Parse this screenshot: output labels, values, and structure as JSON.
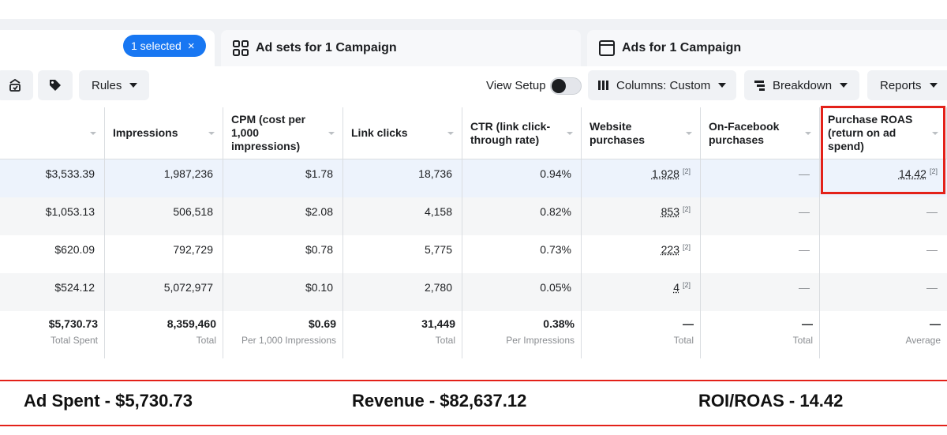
{
  "tabs": {
    "selected_badge": "1 selected",
    "badge_close": "×",
    "adsets_label": "Ad sets for 1 Campaign",
    "ads_label": "Ads for 1 Campaign"
  },
  "toolbar": {
    "rules_label": "Rules",
    "view_setup_label": "View Setup",
    "columns_label": "Columns: Custom",
    "breakdown_label": "Breakdown",
    "reports_label": "Reports"
  },
  "table": {
    "headers": [
      "",
      "Impressions",
      "CPM (cost per 1,000 impressions)",
      "Link clicks",
      "CTR (link click-through rate)",
      "Website purchases",
      "On-Facebook purchases",
      "Purchase ROAS (return on ad spend)"
    ],
    "rows": [
      {
        "spent": "$3,533.39",
        "impressions": "1,987,236",
        "cpm": "$1.78",
        "clicks": "18,736",
        "ctr": "0.94%",
        "web": "1,928",
        "web_note": "[2]",
        "onfb": "—",
        "roas": "14.42",
        "roas_note": "[2]"
      },
      {
        "spent": "$1,053.13",
        "impressions": "506,518",
        "cpm": "$2.08",
        "clicks": "4,158",
        "ctr": "0.82%",
        "web": "853",
        "web_note": "[2]",
        "onfb": "—",
        "roas": "—",
        "roas_note": ""
      },
      {
        "spent": "$620.09",
        "impressions": "792,729",
        "cpm": "$0.78",
        "clicks": "5,775",
        "ctr": "0.73%",
        "web": "223",
        "web_note": "[2]",
        "onfb": "—",
        "roas": "—",
        "roas_note": ""
      },
      {
        "spent": "$524.12",
        "impressions": "5,072,977",
        "cpm": "$0.10",
        "clicks": "2,780",
        "ctr": "0.05%",
        "web": "4",
        "web_note": "[2]",
        "onfb": "—",
        "roas": "—",
        "roas_note": ""
      }
    ],
    "totals": [
      {
        "value": "$5,730.73",
        "label": "Total Spent"
      },
      {
        "value": "8,359,460",
        "label": "Total"
      },
      {
        "value": "$0.69",
        "label": "Per 1,000 Impressions"
      },
      {
        "value": "31,449",
        "label": "Total"
      },
      {
        "value": "0.38%",
        "label": "Per Impressions"
      },
      {
        "value": "—",
        "label": "Total"
      },
      {
        "value": "—",
        "label": "Total"
      },
      {
        "value": "—",
        "label": "Average"
      }
    ]
  },
  "summary": {
    "ad_spent": "Ad Spent - $5,730.73",
    "revenue": "Revenue - $82,637.12",
    "roi": "ROI/ROAS - 14.42"
  },
  "colors": {
    "accent": "#1877f2",
    "highlight_box": "#e32119",
    "selected_row": "#edf3fc",
    "alt_row": "#f5f6f7"
  }
}
